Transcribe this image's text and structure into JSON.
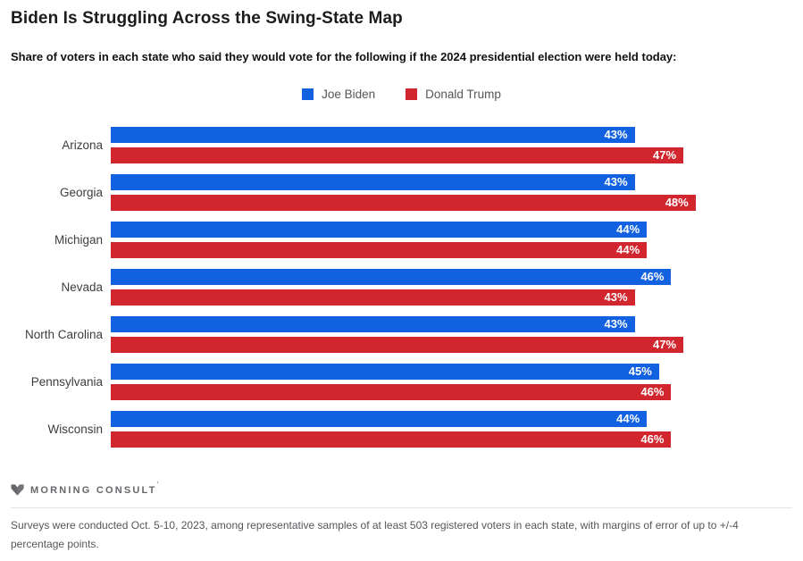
{
  "header": {
    "title": "Biden Is Struggling Across the Swing-State Map",
    "subtitle": "Share of voters in each state who said they would vote for the following if the 2024 presidential election were held today:"
  },
  "legend": [
    {
      "label": "Joe Biden",
      "color": "#1161e0"
    },
    {
      "label": "Donald Trump",
      "color": "#d2262e"
    }
  ],
  "chart_data": {
    "type": "bar",
    "orientation": "horizontal",
    "title": "Biden Is Struggling Across the Swing-State Map",
    "categories": [
      "Arizona",
      "Georgia",
      "Michigan",
      "Nevada",
      "North Carolina",
      "Pennsylvania",
      "Wisconsin"
    ],
    "series": [
      {
        "name": "Joe Biden",
        "color": "#1161e0",
        "values": [
          43,
          43,
          44,
          46,
          43,
          45,
          44
        ]
      },
      {
        "name": "Donald Trump",
        "color": "#d2262e",
        "values": [
          47,
          48,
          44,
          43,
          47,
          46,
          46
        ]
      }
    ],
    "value_suffix": "%",
    "xlim": [
      0,
      50
    ],
    "grid": false,
    "legend_position": "top",
    "value_labels": "inside-end"
  },
  "footer": {
    "brand": "MORNING CONSULT",
    "brand_trademark": "’",
    "source_note": "Surveys were conducted Oct. 5-10, 2023, among representative samples of at least 503 registered voters in each state, with margins of error of up to +/-4 percentage points."
  },
  "colors": {
    "biden_blue": "#1161e0",
    "trump_red": "#d2262e",
    "text_dark": "#1c1c1e",
    "text_gray": "#55565a"
  }
}
